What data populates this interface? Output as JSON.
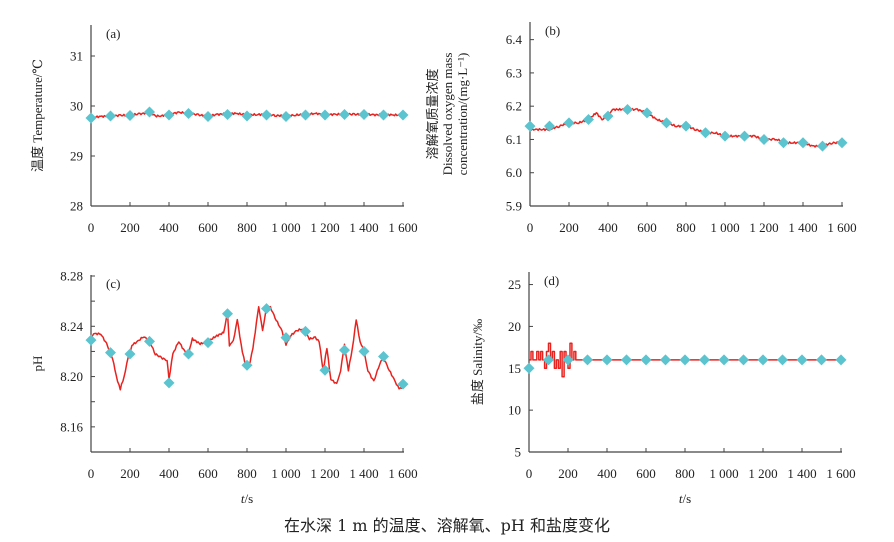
{
  "caption": "在水深 1 m 的温度、溶解氧、pH 和盐度变化",
  "colors": {
    "line": "#e8231f",
    "marker": "#5bc4cf",
    "axis": "#444444"
  },
  "chart_data": [
    {
      "id": "a",
      "type": "line",
      "panel_label": "(a)",
      "title": "",
      "xlabel": "",
      "ylabel": "温度 Temperature/℃",
      "ylabel_lines": [
        "温度 Temperature/℃"
      ],
      "xlim": [
        0,
        1600
      ],
      "ylim": [
        28,
        31.6
      ],
      "yticks": [
        28,
        29,
        30,
        31
      ],
      "ytick_labels": [
        "28",
        "29",
        "30",
        "31"
      ],
      "xticks": [
        0,
        200,
        400,
        600,
        800,
        1000,
        1200,
        1400,
        1600
      ],
      "xtick_labels": [
        "0",
        "200",
        "400",
        "600",
        "800",
        "1 000",
        "1 200",
        "1 400",
        "1 600"
      ],
      "grid": false,
      "series": [
        {
          "name": "continuous",
          "style": "line",
          "x": [
            0,
            50,
            100,
            150,
            200,
            250,
            300,
            330,
            360,
            400,
            450,
            500,
            550,
            600,
            650,
            700,
            750,
            800,
            850,
            900,
            950,
            1000,
            1050,
            1100,
            1150,
            1200,
            1250,
            1300,
            1350,
            1400,
            1450,
            1500,
            1550,
            1600
          ],
          "y": [
            29.77,
            29.79,
            29.8,
            29.81,
            29.82,
            29.84,
            29.87,
            29.8,
            29.8,
            29.84,
            29.87,
            29.86,
            29.82,
            29.8,
            29.83,
            29.85,
            29.85,
            29.82,
            29.83,
            29.83,
            29.81,
            29.8,
            29.82,
            29.83,
            29.85,
            29.83,
            29.83,
            29.84,
            29.83,
            29.84,
            29.82,
            29.83,
            29.82,
            29.82
          ]
        },
        {
          "name": "sampled",
          "style": "diamond",
          "x": [
            0,
            100,
            200,
            300,
            400,
            500,
            600,
            700,
            800,
            900,
            1000,
            1100,
            1200,
            1300,
            1400,
            1500,
            1600
          ],
          "y": [
            29.76,
            29.8,
            29.81,
            29.88,
            29.82,
            29.85,
            29.79,
            29.83,
            29.8,
            29.82,
            29.79,
            29.82,
            29.82,
            29.83,
            29.83,
            29.82,
            29.82
          ]
        }
      ]
    },
    {
      "id": "b",
      "type": "line",
      "panel_label": "(b)",
      "title": "",
      "xlabel": "",
      "ylabel": "溶解氧质量浓度 Dissolved oxygen mass concentration/(mg·L⁻¹)",
      "ylabel_lines": [
        "溶解氧质量浓度",
        "Dissolved oxygen mass",
        "concentration/(mg·L⁻¹)"
      ],
      "xlim": [
        0,
        1600
      ],
      "ylim": [
        5.9,
        6.45
      ],
      "yticks": [
        5.9,
        6.0,
        6.1,
        6.2,
        6.3,
        6.4
      ],
      "ytick_labels": [
        "5.9",
        "6.0",
        "6.1",
        "6.2",
        "6.3",
        "6.4"
      ],
      "xticks": [
        0,
        200,
        400,
        600,
        800,
        1000,
        1200,
        1400,
        1600
      ],
      "xtick_labels": [
        "0",
        "200",
        "400",
        "600",
        "800",
        "1 000",
        "1 200",
        "1 400",
        "1 600"
      ],
      "grid": false,
      "series": [
        {
          "name": "continuous",
          "style": "line",
          "x": [
            0,
            30,
            60,
            100,
            150,
            200,
            250,
            300,
            340,
            370,
            400,
            420,
            460,
            500,
            550,
            600,
            650,
            700,
            750,
            800,
            850,
            900,
            950,
            1000,
            1050,
            1100,
            1150,
            1200,
            1250,
            1270,
            1300,
            1350,
            1400,
            1450,
            1480,
            1500,
            1550,
            1600
          ],
          "y": [
            6.13,
            6.13,
            6.13,
            6.13,
            6.14,
            6.15,
            6.15,
            6.16,
            6.18,
            6.16,
            6.17,
            6.19,
            6.19,
            6.19,
            6.19,
            6.18,
            6.16,
            6.15,
            6.14,
            6.14,
            6.13,
            6.12,
            6.12,
            6.11,
            6.11,
            6.11,
            6.11,
            6.1,
            6.1,
            6.1,
            6.09,
            6.09,
            6.09,
            6.08,
            6.08,
            6.08,
            6.09,
            6.09
          ]
        },
        {
          "name": "sampled",
          "style": "diamond",
          "x": [
            0,
            100,
            200,
            300,
            400,
            500,
            600,
            700,
            800,
            900,
            1000,
            1100,
            1200,
            1300,
            1400,
            1500,
            1600
          ],
          "y": [
            6.14,
            6.14,
            6.15,
            6.16,
            6.17,
            6.19,
            6.18,
            6.15,
            6.14,
            6.12,
            6.11,
            6.11,
            6.1,
            6.09,
            6.09,
            6.08,
            6.09
          ]
        }
      ]
    },
    {
      "id": "c",
      "type": "line",
      "panel_label": "(c)",
      "title": "",
      "xlabel": "t/s",
      "ylabel": "pH",
      "ylabel_lines": [
        "pH"
      ],
      "xlim": [
        0,
        1600
      ],
      "ylim": [
        8.14,
        8.28
      ],
      "yticks": [
        8.16,
        8.2,
        8.24,
        8.28
      ],
      "ytick_labels": [
        "8.16",
        "8.20",
        "8.24",
        "8.28"
      ],
      "minor_yticks": [
        8.14,
        8.18,
        8.22,
        8.26
      ],
      "xticks": [
        0,
        200,
        400,
        600,
        800,
        1000,
        1200,
        1400,
        1600
      ],
      "xtick_labels": [
        "0",
        "200",
        "400",
        "600",
        "800",
        "1 000",
        "1 200",
        "1 400",
        "1 600"
      ],
      "grid": false,
      "series": [
        {
          "name": "continuous",
          "style": "line",
          "x": [
            0,
            20,
            50,
            80,
            110,
            130,
            150,
            170,
            190,
            210,
            240,
            270,
            300,
            330,
            360,
            390,
            400,
            420,
            450,
            480,
            500,
            520,
            560,
            600,
            640,
            680,
            700,
            710,
            730,
            750,
            770,
            790,
            810,
            830,
            860,
            880,
            900,
            920,
            950,
            980,
            1000,
            1020,
            1050,
            1080,
            1100,
            1120,
            1150,
            1170,
            1190,
            1210,
            1230,
            1260,
            1280,
            1300,
            1320,
            1340,
            1360,
            1380,
            1400,
            1420,
            1450,
            1480,
            1500,
            1530,
            1560,
            1580,
            1600
          ],
          "y": [
            8.232,
            8.234,
            8.234,
            8.226,
            8.215,
            8.2,
            8.19,
            8.2,
            8.215,
            8.225,
            8.228,
            8.232,
            8.228,
            8.218,
            8.215,
            8.213,
            8.198,
            8.218,
            8.228,
            8.22,
            8.218,
            8.23,
            8.226,
            8.228,
            8.232,
            8.235,
            8.25,
            8.225,
            8.228,
            8.246,
            8.225,
            8.21,
            8.208,
            8.222,
            8.256,
            8.236,
            8.256,
            8.255,
            8.245,
            8.236,
            8.225,
            8.232,
            8.236,
            8.238,
            8.236,
            8.23,
            8.231,
            8.228,
            8.205,
            8.222,
            8.198,
            8.194,
            8.205,
            8.225,
            8.205,
            8.222,
            8.245,
            8.228,
            8.22,
            8.205,
            8.196,
            8.21,
            8.215,
            8.205,
            8.196,
            8.19,
            8.192
          ]
        },
        {
          "name": "sampled",
          "style": "diamond",
          "x": [
            0,
            100,
            200,
            300,
            400,
            500,
            600,
            700,
            800,
            900,
            1000,
            1100,
            1200,
            1300,
            1400,
            1500,
            1600
          ],
          "y": [
            8.229,
            8.219,
            8.218,
            8.228,
            8.195,
            8.218,
            8.227,
            8.25,
            8.209,
            8.254,
            8.231,
            8.236,
            8.205,
            8.221,
            8.22,
            8.216,
            8.194
          ]
        }
      ]
    },
    {
      "id": "d",
      "type": "line",
      "panel_label": "(d)",
      "title": "",
      "xlabel": "t/s",
      "ylabel": "盐度 Salinity/‰",
      "ylabel_lines": [
        "盐度 Salinity/‰"
      ],
      "xlim": [
        0,
        1600
      ],
      "ylim": [
        5,
        26.5
      ],
      "yticks": [
        5,
        10,
        15,
        20,
        25
      ],
      "ytick_labels": [
        "5",
        "10",
        "15",
        "20",
        "25"
      ],
      "xticks": [
        0,
        200,
        400,
        600,
        800,
        1000,
        1200,
        1400,
        1600
      ],
      "xtick_labels": [
        "0",
        "200",
        "400",
        "600",
        "800",
        "1 000",
        "1 200",
        "1 400",
        "1 600"
      ],
      "grid": false,
      "series": [
        {
          "name": "continuous",
          "style": "step",
          "x": [
            0,
            10,
            20,
            40,
            50,
            60,
            70,
            80,
            90,
            100,
            110,
            120,
            130,
            140,
            150,
            160,
            170,
            180,
            190,
            200,
            210,
            220,
            230,
            240,
            250,
            1600
          ],
          "y": [
            16,
            17,
            16,
            17,
            16,
            17,
            16,
            15,
            17,
            18,
            16,
            17,
            15,
            16,
            15,
            17,
            14,
            17,
            16,
            15,
            18,
            16,
            17,
            16,
            16,
            16
          ]
        },
        {
          "name": "sampled",
          "style": "diamond",
          "x": [
            0,
            100,
            200,
            300,
            400,
            500,
            600,
            700,
            800,
            900,
            1000,
            1100,
            1200,
            1300,
            1400,
            1500,
            1600
          ],
          "y": [
            15,
            16,
            16,
            16,
            16,
            16,
            16,
            16,
            16,
            16,
            16,
            16,
            16,
            16,
            16,
            16,
            16
          ]
        }
      ]
    }
  ]
}
